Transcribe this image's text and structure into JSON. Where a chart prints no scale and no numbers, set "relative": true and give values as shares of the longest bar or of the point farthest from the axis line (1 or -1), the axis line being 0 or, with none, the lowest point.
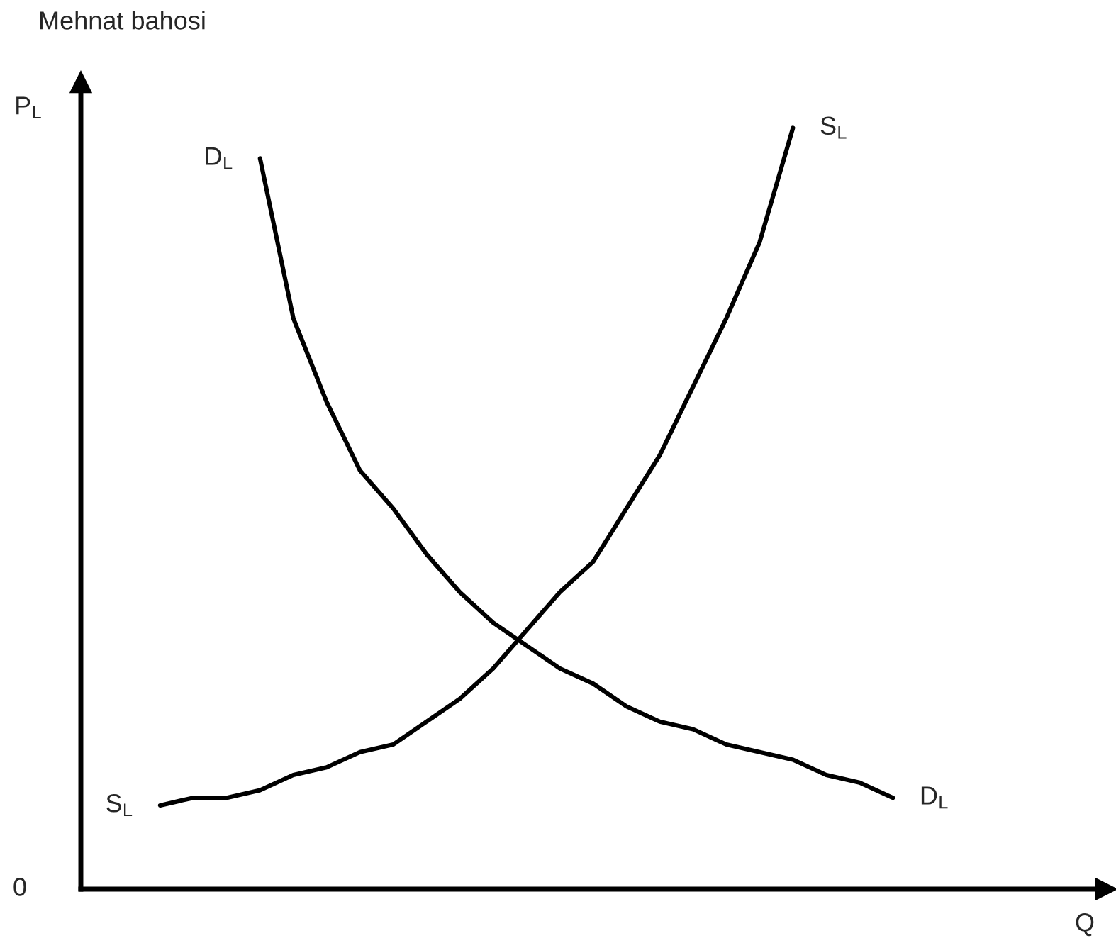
{
  "chart_data": {
    "type": "line",
    "relative": true,
    "title": "Mehnat bahosi",
    "ylabel": "P$_{L}$",
    "annotations": [
      "0",
      "Q"
    ],
    "categories": [
      null,
      null,
      null,
      null,
      null,
      null,
      null,
      null,
      null,
      null,
      null,
      null,
      null,
      null,
      null,
      null,
      null,
      null,
      null,
      null,
      null,
      null,
      null
    ],
    "series": [
      {
        "name": "D$_{L}$",
        "color": "#000000",
        "values": [
          null,
          null,
          null,
          0.96,
          0.75,
          0.64,
          0.55,
          0.5,
          0.44,
          0.39,
          0.35,
          0.32,
          0.29,
          0.27,
          0.24,
          0.22,
          0.21,
          0.19,
          0.18,
          0.17,
          0.15,
          0.14,
          0.12
        ]
      },
      {
        "name": "S$_{L}$",
        "color": "#000000",
        "values": [
          0.11,
          0.12,
          0.12,
          0.13,
          0.15,
          0.16,
          0.18,
          0.19,
          0.22,
          0.25,
          0.29,
          0.34,
          0.39,
          0.43,
          0.5,
          0.57,
          0.66,
          0.75,
          0.85,
          1,
          null,
          null,
          null
        ]
      }
    ]
  }
}
